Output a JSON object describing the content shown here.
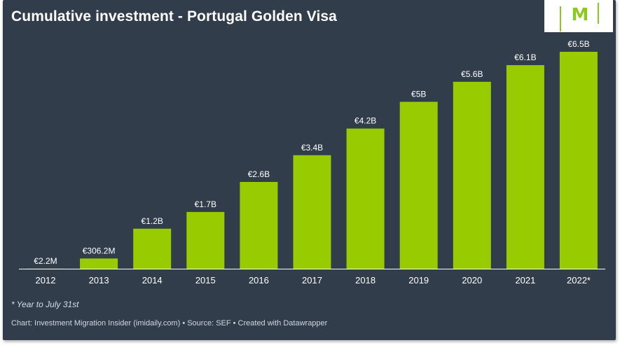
{
  "header": {
    "title": "Cumulative investment - Portugal Golden Visa",
    "logo_text": "M"
  },
  "colors": {
    "background": "#323d4c",
    "bar": "#99cc00",
    "axis": "#ffffff",
    "logo_accent": "#8cc820"
  },
  "chart_data": {
    "type": "bar",
    "title": "Cumulative investment - Portugal Golden Visa",
    "xlabel": "",
    "ylabel": "",
    "unit": "EUR billions",
    "categories": [
      "2012",
      "2013",
      "2014",
      "2015",
      "2016",
      "2017",
      "2018",
      "2019",
      "2020",
      "2021",
      "2022*"
    ],
    "values": [
      0.0022,
      0.3062,
      1.2,
      1.7,
      2.6,
      3.4,
      4.2,
      5.0,
      5.6,
      6.1,
      6.5
    ],
    "value_labels": [
      "€2.2M",
      "€306.2M",
      "€1.2B",
      "€1.7B",
      "€2.6B",
      "€3.4B",
      "€4.2B",
      "€5B",
      "€5.6B",
      "€6.1B",
      "€6.5B"
    ],
    "ylim": [
      0,
      6.5
    ],
    "grid": false,
    "legend": "none"
  },
  "footer": {
    "note": "* Year to July 31st",
    "source": "Chart: Investment Migration Insider (imidaily.com) • Source: SEF • Created with Datawrapper"
  }
}
